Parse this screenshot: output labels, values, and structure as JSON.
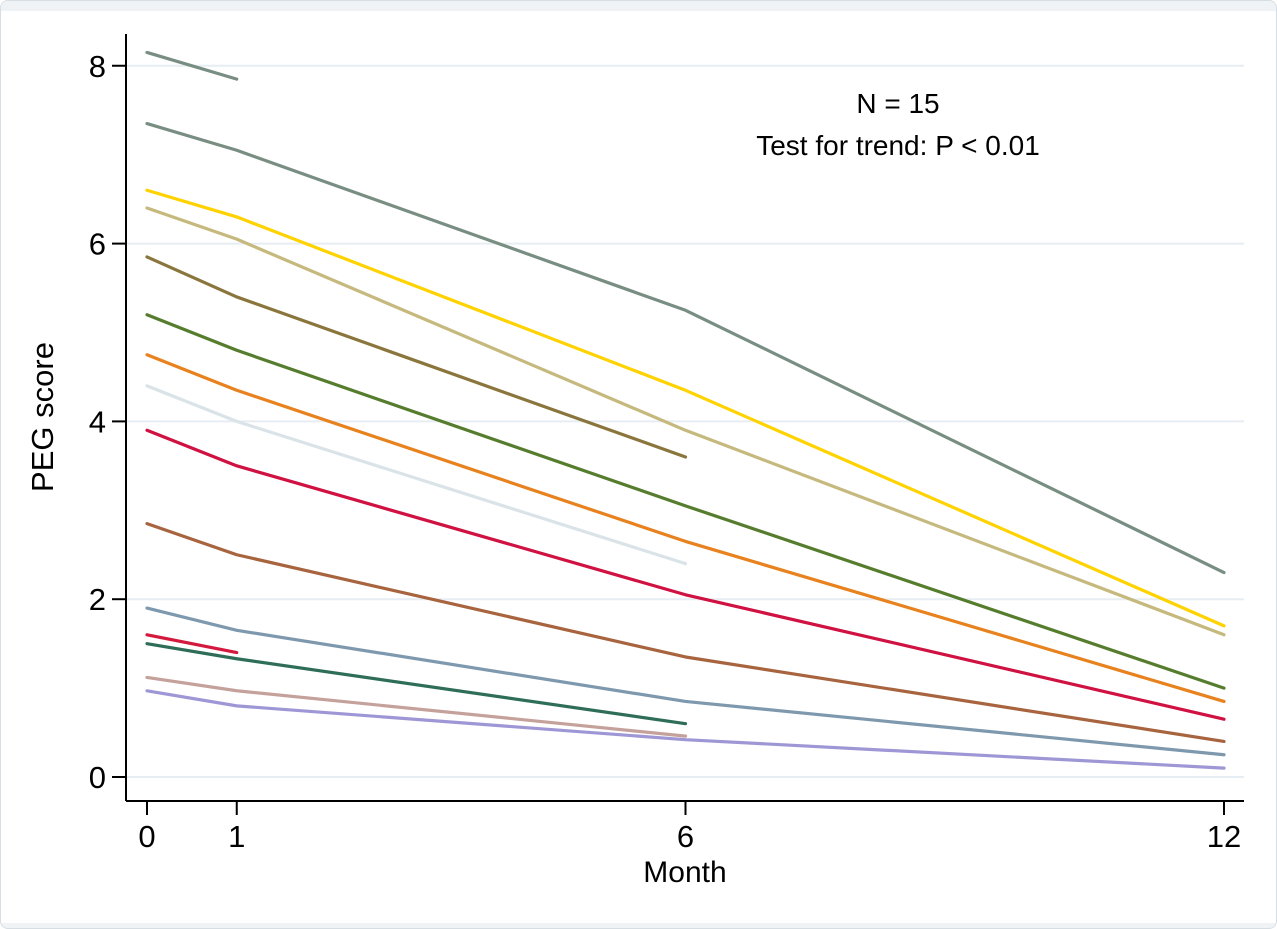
{
  "annotation": {
    "line1": "N = 15",
    "line2": "Test for trend: P < 0.01"
  },
  "chart_data": {
    "type": "line",
    "title": "",
    "xlabel": "Month",
    "ylabel": "PEG score",
    "x_ticks": [
      0,
      1,
      6,
      12
    ],
    "y_ticks": [
      0,
      2,
      4,
      6,
      8
    ],
    "xlim": [
      0,
      12
    ],
    "ylim": [
      0,
      8.4
    ],
    "grid": "horizontal",
    "grid_color": "#e7eef3",
    "axis_color": "#000000",
    "legend": "none",
    "series": [
      {
        "name": "patient-1",
        "color": "#798e82",
        "x": [
          0,
          1
        ],
        "y": [
          8.15,
          7.85
        ]
      },
      {
        "name": "patient-2",
        "color": "#798e82",
        "x": [
          0,
          1,
          6,
          12
        ],
        "y": [
          7.35,
          7.05,
          5.25,
          2.3
        ]
      },
      {
        "name": "patient-3",
        "color": "#ffd200",
        "x": [
          0,
          1,
          6,
          12
        ],
        "y": [
          6.6,
          6.3,
          4.35,
          1.7
        ]
      },
      {
        "name": "patient-4",
        "color": "#c6b97e",
        "x": [
          0,
          1,
          6,
          12
        ],
        "y": [
          6.4,
          6.05,
          3.9,
          1.6
        ]
      },
      {
        "name": "patient-5",
        "color": "#8a763c",
        "x": [
          0,
          1,
          6
        ],
        "y": [
          5.85,
          5.4,
          3.6
        ]
      },
      {
        "name": "patient-6",
        "color": "#567d2e",
        "x": [
          0,
          1,
          6,
          12
        ],
        "y": [
          5.2,
          4.8,
          3.05,
          1.0
        ]
      },
      {
        "name": "patient-7",
        "color": "#e8821e",
        "x": [
          0,
          1,
          6,
          12
        ],
        "y": [
          4.75,
          4.35,
          2.65,
          0.85
        ]
      },
      {
        "name": "patient-8",
        "color": "#d9e3e8",
        "x": [
          0,
          1,
          6
        ],
        "y": [
          4.4,
          4.0,
          2.4
        ]
      },
      {
        "name": "patient-9",
        "color": "#d01242",
        "x": [
          0,
          1,
          6,
          12
        ],
        "y": [
          3.9,
          3.5,
          2.05,
          0.65
        ]
      },
      {
        "name": "patient-10",
        "color": "#a8643e",
        "x": [
          0,
          1,
          6,
          12
        ],
        "y": [
          2.85,
          2.5,
          1.35,
          0.4
        ]
      },
      {
        "name": "patient-11",
        "color": "#7e99ae",
        "x": [
          0,
          1,
          6,
          12
        ],
        "y": [
          1.9,
          1.65,
          0.85,
          0.25
        ]
      },
      {
        "name": "patient-12",
        "color": "#d31a3e",
        "x": [
          0,
          1
        ],
        "y": [
          1.6,
          1.4
        ]
      },
      {
        "name": "patient-13",
        "color": "#2e6d58",
        "x": [
          0,
          1,
          6
        ],
        "y": [
          1.5,
          1.33,
          0.6
        ]
      },
      {
        "name": "patient-14",
        "color": "#c5a19b",
        "x": [
          0,
          1,
          6
        ],
        "y": [
          1.12,
          0.97,
          0.46
        ]
      },
      {
        "name": "patient-15",
        "color": "#9d97d5",
        "x": [
          0,
          1,
          6,
          12
        ],
        "y": [
          0.97,
          0.8,
          0.42,
          0.1
        ]
      }
    ]
  }
}
